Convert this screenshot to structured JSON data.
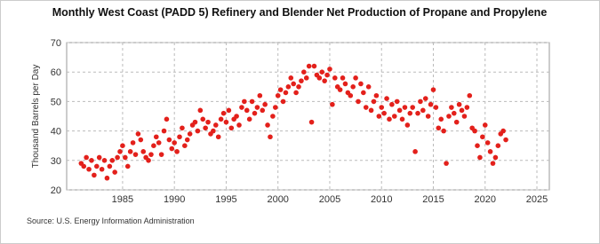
{
  "chart_data": {
    "type": "scatter",
    "title": "Monthly West Coast (PADD 5) Refinery and Blender Net Production of Propane and Propylene",
    "y_label": "Thousand Barrels per Day",
    "source": "Source: U.S. Energy Information Administration",
    "color": "#e3201b",
    "grid": true,
    "xlim": [
      1979.6,
      2026.2
    ],
    "xticks": [
      1985,
      1990,
      1995,
      2000,
      2005,
      2010,
      2015,
      2020,
      2025
    ],
    "ylim": [
      20,
      70
    ],
    "yticks": [
      20,
      30,
      40,
      50,
      60,
      70
    ],
    "x": [
      1981,
      1981.25,
      1981.5,
      1981.75,
      1982,
      1982.25,
      1982.5,
      1982.75,
      1983,
      1983.25,
      1983.5,
      1983.75,
      1984,
      1984.25,
      1984.5,
      1984.75,
      1985,
      1985.25,
      1985.5,
      1985.75,
      1986,
      1986.25,
      1986.5,
      1986.75,
      1987,
      1987.25,
      1987.5,
      1987.75,
      1988,
      1988.25,
      1988.5,
      1988.75,
      1989,
      1989.25,
      1989.5,
      1989.75,
      1990,
      1990.25,
      1990.5,
      1990.75,
      1991,
      1991.25,
      1991.5,
      1991.75,
      1992,
      1992.25,
      1992.5,
      1992.75,
      1993,
      1993.25,
      1993.5,
      1993.75,
      1994,
      1994.25,
      1994.5,
      1994.75,
      1995,
      1995.25,
      1995.5,
      1995.75,
      1996,
      1996.25,
      1996.5,
      1996.75,
      1997,
      1997.25,
      1997.5,
      1997.75,
      1998,
      1998.25,
      1998.5,
      1998.75,
      1999,
      1999.25,
      1999.5,
      1999.75,
      2000,
      2000.25,
      2000.5,
      2000.75,
      2001,
      2001.25,
      2001.5,
      2001.75,
      2002,
      2002.25,
      2002.5,
      2002.75,
      2003,
      2003.25,
      2003.5,
      2003.75,
      2004,
      2004.25,
      2004.5,
      2004.75,
      2005,
      2005.25,
      2005.5,
      2005.75,
      2006,
      2006.25,
      2006.5,
      2006.75,
      2007,
      2007.25,
      2007.5,
      2007.75,
      2008,
      2008.25,
      2008.5,
      2008.75,
      2009,
      2009.25,
      2009.5,
      2009.75,
      2010,
      2010.25,
      2010.5,
      2010.75,
      2011,
      2011.25,
      2011.5,
      2011.75,
      2012,
      2012.25,
      2012.5,
      2012.75,
      2013,
      2013.25,
      2013.5,
      2013.75,
      2014,
      2014.25,
      2014.5,
      2014.75,
      2015,
      2015.25,
      2015.5,
      2015.75,
      2016,
      2016.25,
      2016.5,
      2016.75,
      2017,
      2017.25,
      2017.5,
      2017.75,
      2018,
      2018.25,
      2018.5,
      2018.75,
      2019,
      2019.25,
      2019.5,
      2019.75,
      2020,
      2020.25,
      2020.5,
      2020.75,
      2021,
      2021.25,
      2021.5,
      2021.75,
      2022
    ],
    "values": [
      29,
      28,
      31,
      27,
      30,
      25,
      28,
      31,
      27,
      30,
      24,
      28,
      30,
      26,
      31,
      33,
      35,
      31,
      28,
      33,
      36,
      32,
      39,
      37,
      33,
      31,
      30,
      32,
      35,
      38,
      36,
      32,
      40,
      44,
      37,
      34,
      36,
      33,
      38,
      41,
      35,
      37,
      39,
      42,
      43,
      40,
      47,
      44,
      41,
      43,
      39,
      40,
      42,
      38,
      44,
      46,
      43,
      47,
      41,
      44,
      45,
      42,
      48,
      50,
      47,
      44,
      50,
      46,
      48,
      52,
      47,
      49,
      42,
      38,
      45,
      48,
      52,
      54,
      50,
      53,
      55,
      58,
      56,
      53,
      55,
      57,
      60,
      58,
      62,
      43,
      62,
      59,
      58,
      60,
      57,
      59,
      61,
      49,
      58,
      55,
      54,
      58,
      56,
      53,
      52,
      55,
      58,
      50,
      56,
      53,
      48,
      55,
      47,
      50,
      52,
      45,
      48,
      46,
      51,
      44,
      49,
      45,
      50,
      47,
      44,
      48,
      42,
      46,
      48,
      33,
      46,
      50,
      47,
      51,
      45,
      49,
      54,
      48,
      41,
      44,
      40,
      29,
      45,
      48,
      46,
      43,
      49,
      47,
      45,
      48,
      52,
      41,
      40,
      35,
      31,
      38,
      42,
      36,
      33,
      29,
      31,
      35,
      39,
      40,
      37
    ]
  }
}
